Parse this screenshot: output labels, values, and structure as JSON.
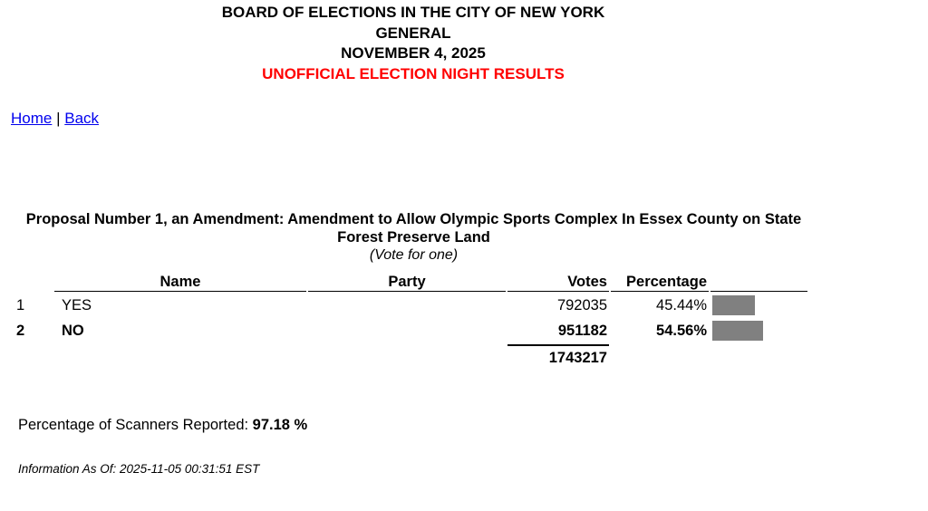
{
  "header": {
    "line1": "BOARD OF ELECTIONS IN THE CITY OF NEW YORK",
    "line2": "GENERAL",
    "line3": "NOVEMBER 4, 2025",
    "line4": "UNOFFICIAL ELECTION NIGHT RESULTS",
    "alert_color": "#ff0000"
  },
  "nav": {
    "home": "Home",
    "separator": "|",
    "back": "Back"
  },
  "contest": {
    "title": "Proposal Number 1, an Amendment: Amendment to Allow Olympic Sports Complex In Essex County on State Forest Preserve Land",
    "vote_for": "(Vote for one)"
  },
  "table": {
    "headers": {
      "name": "Name",
      "party": "Party",
      "votes": "Votes",
      "percentage": "Percentage"
    },
    "rows": [
      {
        "index": "1",
        "name": "YES",
        "party": "",
        "votes": "792035",
        "percentage": "45.44%",
        "share": 45.44
      },
      {
        "index": "2",
        "name": "NO",
        "party": "",
        "votes": "951182",
        "percentage": "54.56%",
        "share": 54.56
      }
    ],
    "total": "1743217",
    "bar_color": "#808080"
  },
  "scanners": {
    "label": "Percentage of Scanners Reported:",
    "value": "97.18 %"
  },
  "info": {
    "as_of": "Information As Of: 2025-11-05 00:31:51 EST"
  }
}
